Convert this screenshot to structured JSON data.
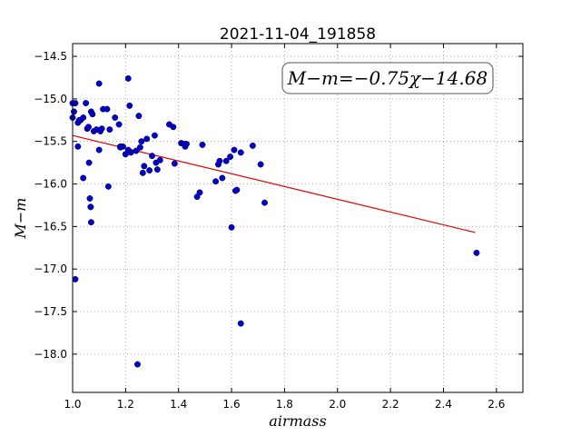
{
  "chart_data": {
    "type": "scatter",
    "title": "2021-11-04_191858",
    "xlabel": "airmass",
    "ylabel": "M−m",
    "xlim": [
      1.0,
      2.7
    ],
    "ylim": [
      -18.45,
      -14.35
    ],
    "y_inverted": true,
    "xticks": [
      1.0,
      1.2,
      1.4,
      1.6,
      1.8,
      2.0,
      2.2,
      2.4,
      2.6
    ],
    "xtick_labels": [
      "1.0",
      "1.2",
      "1.4",
      "1.6",
      "1.8",
      "2.0",
      "2.2",
      "2.4",
      "2.6"
    ],
    "yticks": [
      -14.5,
      -15.0,
      -15.5,
      -16.0,
      -16.5,
      -17.0,
      -17.5,
      -18.0
    ],
    "ytick_labels": [
      "−14.5",
      "−15.0",
      "−15.5",
      "−16.0",
      "−16.5",
      "−17.0",
      "−17.5",
      "−18.0"
    ],
    "grid": true,
    "annotation": "M−m=−0.75χ−14.68",
    "colors": {
      "points": "#0000cc",
      "fit": "#e00000"
    },
    "fit_line": {
      "slope": -0.75,
      "intercept": -14.68,
      "x_range": [
        1.0,
        2.52
      ]
    },
    "series": [
      {
        "x": [
          1.0,
          1.0,
          1.005,
          1.01,
          1.01,
          1.02,
          1.02,
          1.025,
          1.03,
          1.04,
          1.04,
          1.05,
          1.055,
          1.06,
          1.062,
          1.065,
          1.068,
          1.07,
          1.068,
          1.07,
          1.075,
          1.08,
          1.09,
          1.1,
          1.1,
          1.105,
          1.11,
          1.115,
          1.13,
          1.135,
          1.14,
          1.16,
          1.175,
          1.18,
          1.18,
          1.19,
          1.2,
          1.2,
          1.21,
          1.21,
          1.215,
          1.22,
          1.24,
          1.245,
          1.25,
          1.255,
          1.26,
          1.265,
          1.27,
          1.28,
          1.29,
          1.3,
          1.31,
          1.315,
          1.32,
          1.33,
          1.365,
          1.38,
          1.385,
          1.41,
          1.42,
          1.425,
          1.43,
          1.47,
          1.48,
          1.49,
          1.54,
          1.55,
          1.555,
          1.565,
          1.58,
          1.595,
          1.6,
          1.61,
          1.615,
          1.62,
          1.635,
          1.635,
          1.68,
          1.71,
          1.725,
          2.525
        ],
        "y": [
          -15.05,
          -15.22,
          -15.15,
          -15.05,
          -17.12,
          -15.28,
          -15.56,
          -15.25,
          -15.25,
          -15.93,
          -15.22,
          -15.05,
          -15.35,
          -15.33,
          -15.75,
          -16.17,
          -16.27,
          -16.45,
          -16.27,
          -15.15,
          -15.18,
          -15.38,
          -15.36,
          -14.82,
          -15.6,
          -15.38,
          -15.35,
          -15.12,
          -15.12,
          -16.03,
          -15.36,
          -15.22,
          -15.3,
          -15.56,
          -15.57,
          -15.56,
          -15.65,
          -15.65,
          -14.76,
          -15.6,
          -15.08,
          -15.63,
          -15.61,
          -18.12,
          -15.2,
          -15.57,
          -15.5,
          -15.87,
          -15.79,
          -15.47,
          -15.84,
          -15.67,
          -15.43,
          -15.75,
          -15.83,
          -15.72,
          -15.3,
          -15.33,
          -15.76,
          -15.52,
          -15.53,
          -15.56,
          -15.53,
          -16.15,
          -16.1,
          -15.54,
          -15.97,
          -15.77,
          -15.73,
          -15.93,
          -15.73,
          -15.68,
          -16.51,
          -15.6,
          -16.08,
          -16.07,
          -15.63,
          -17.64,
          -15.55,
          -15.77,
          -16.22,
          -16.81
        ]
      }
    ]
  }
}
